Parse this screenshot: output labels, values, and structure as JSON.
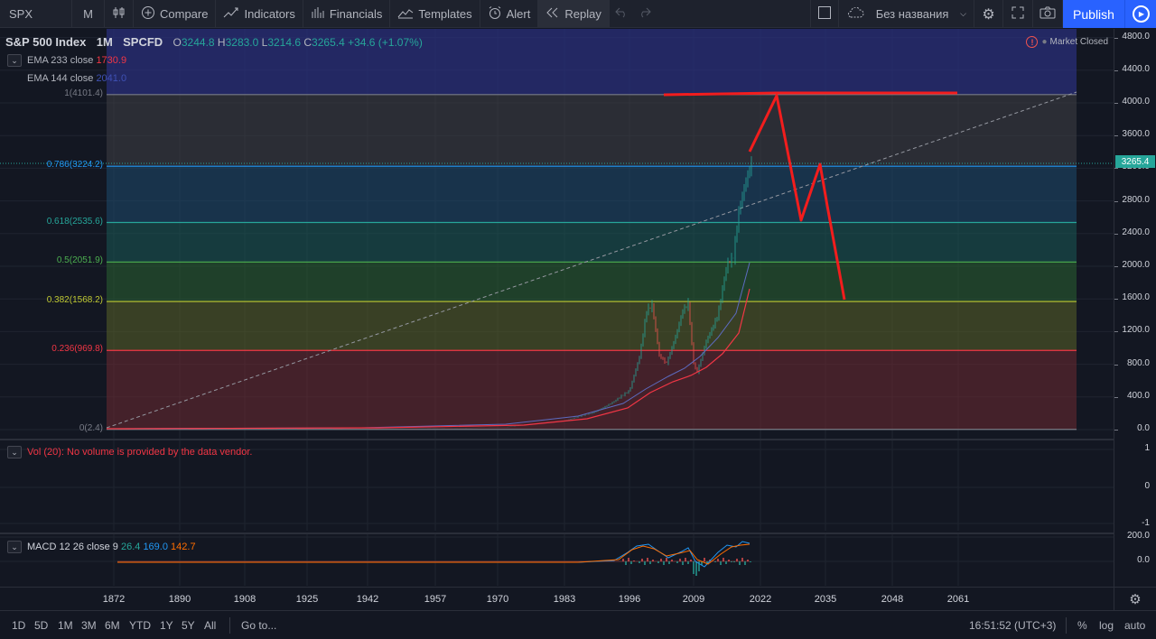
{
  "toolbar": {
    "symbol": "SPX",
    "interval": "M",
    "compare": "Compare",
    "indicators": "Indicators",
    "financials": "Financials",
    "templates": "Templates",
    "alert": "Alert",
    "replay": "Replay",
    "layout_name": "Без названия",
    "publish": "Publish"
  },
  "legend": {
    "title": "S&P 500 Index",
    "interval": "1M",
    "source": "SPCFD",
    "o_key": "O",
    "o": "3244.8",
    "h_key": "H",
    "h": "3283.0",
    "l_key": "L",
    "l": "3214.6",
    "c_key": "C",
    "c": "3265.4",
    "change": "+34.6 (+1.07%)",
    "market_status": "Market Closed"
  },
  "indicators": {
    "ema233": {
      "label": "EMA 233 close",
      "value": "1730.9",
      "color": "#f23645"
    },
    "ema144": {
      "label": "EMA 144 close",
      "value": "2041.0",
      "color": "#3f51b5"
    },
    "vol": "Vol (20): No volume is provided by the data vendor.",
    "macd": {
      "label": "MACD 12 26 close 9",
      "v1": "26.4",
      "v2": "169.0",
      "v3": "142.7"
    }
  },
  "fib_levels": [
    {
      "label": "1(4101.4)",
      "price": 4101.4,
      "color": "#787b86"
    },
    {
      "label": "0.786(3224.2)",
      "price": 3224.2,
      "color": "#2196f3"
    },
    {
      "label": "0.618(2535.6)",
      "price": 2535.6,
      "color": "#26a69a"
    },
    {
      "label": "0.5(2051.9)",
      "price": 2051.9,
      "color": "#4caf50"
    },
    {
      "label": "0.382(1568.2)",
      "price": 1568.2,
      "color": "#c0ca33"
    },
    {
      "label": "0.236(969.8)",
      "price": 969.8,
      "color": "#f23645"
    },
    {
      "label": "0(2.4)",
      "price": 2.4,
      "color": "#787b86"
    }
  ],
  "price_scale": {
    "main": [
      "4800.0",
      "4400.0",
      "4000.0",
      "3600.0",
      "3200.0",
      "2800.0",
      "2400.0",
      "2000.0",
      "1600.0",
      "1200.0",
      "800.0",
      "400.0",
      "0.0"
    ],
    "last_price": "3265.4",
    "volume": [
      "1",
      "0",
      "-1"
    ],
    "macd": [
      "200.0",
      "0.0"
    ]
  },
  "time_axis": [
    "1872",
    "1890",
    "1908",
    "1925",
    "1942",
    "1957",
    "1970",
    "1983",
    "1996",
    "2009",
    "2022",
    "2035",
    "2048",
    "2061"
  ],
  "bottom_bar": {
    "ranges": [
      "1D",
      "5D",
      "1M",
      "3M",
      "6M",
      "YTD",
      "1Y",
      "5Y",
      "All"
    ],
    "goto": "Go to...",
    "time": "16:51:52 (UTC+3)",
    "percent": "%",
    "log": "log",
    "auto": "auto"
  },
  "colors": {
    "background": "#131722",
    "accent": "#2962ff",
    "up": "#26a69a",
    "down": "#ef5350",
    "drawing": "#f21d1d"
  },
  "icons": {
    "compare": "plus-circle-icon",
    "indicators": "indicators-icon",
    "financials": "bar-chart-icon",
    "templates": "templates-icon",
    "alert": "alarm-clock-icon",
    "replay": "rewind-icon",
    "undo": "undo-icon",
    "redo": "redo-icon",
    "settings": "gear-icon",
    "fullscreen": "fullscreen-icon",
    "snapshot": "camera-icon",
    "play": "play-icon"
  }
}
